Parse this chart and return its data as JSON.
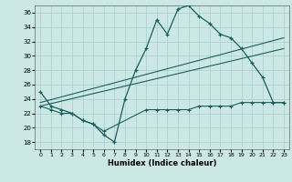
{
  "xlabel": "Humidex (Indice chaleur)",
  "bg_color": "#cce8e4",
  "grid_color": "#aacfcb",
  "line_color": "#1a5f5f",
  "ylim": [
    17,
    37
  ],
  "xlim": [
    -0.5,
    23.5
  ],
  "yticks": [
    18,
    20,
    22,
    24,
    26,
    28,
    30,
    32,
    34,
    36
  ],
  "xticks": [
    0,
    1,
    2,
    3,
    4,
    5,
    6,
    7,
    8,
    9,
    10,
    11,
    12,
    13,
    14,
    15,
    16,
    17,
    18,
    19,
    20,
    21,
    22,
    23
  ],
  "curve1_x": [
    0,
    1,
    2,
    3,
    4,
    5,
    6,
    7,
    8,
    9,
    10,
    11,
    12,
    13,
    14,
    15,
    16,
    17,
    18,
    19,
    20,
    21,
    22,
    23
  ],
  "curve1_y": [
    25,
    23,
    22.5,
    22,
    21,
    20.5,
    19,
    18,
    24,
    28,
    31,
    35,
    33,
    36.5,
    37,
    35.5,
    34.5,
    33,
    32.5,
    31,
    29,
    27,
    23.5,
    23.5
  ],
  "curve2_x": [
    0,
    1,
    2,
    3,
    4,
    5,
    6,
    10,
    11,
    12,
    13,
    14,
    15,
    16,
    17,
    18,
    19,
    20,
    21,
    22,
    23
  ],
  "curve2_y": [
    23,
    22.5,
    22,
    22,
    21,
    20.5,
    19.5,
    22.5,
    22.5,
    22.5,
    22.5,
    22.5,
    23,
    23,
    23,
    23,
    23.5,
    23.5,
    23.5,
    23.5,
    23.5
  ],
  "line3_x": [
    0,
    23
  ],
  "line3_y": [
    23.5,
    32.5
  ],
  "line4_x": [
    0,
    23
  ],
  "line4_y": [
    23.0,
    31.0
  ]
}
